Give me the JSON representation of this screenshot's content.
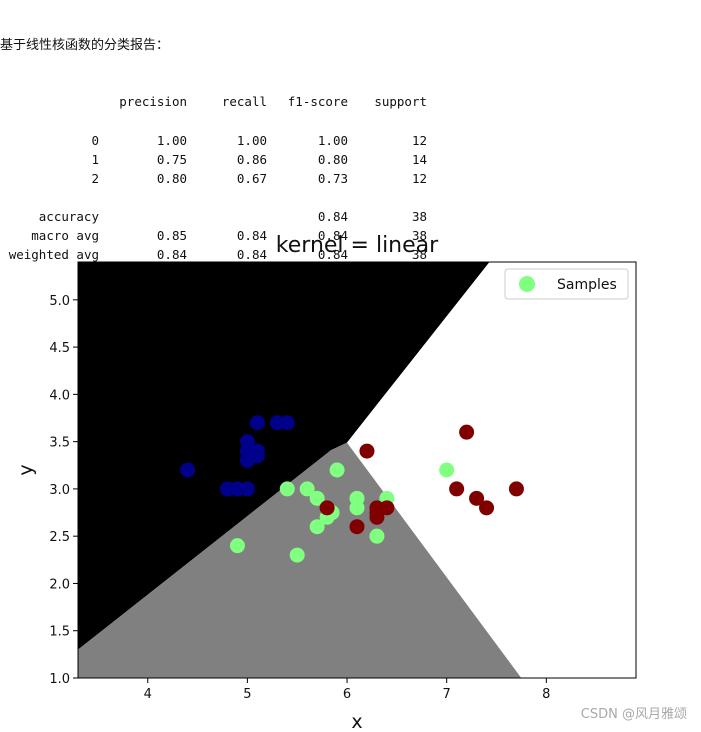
{
  "report": {
    "title": "基于线性核函数的分类报告：",
    "header": [
      "",
      "precision",
      "recall",
      "f1-score",
      "support"
    ],
    "rows": [
      [
        "0",
        "1.00",
        "1.00",
        "1.00",
        "12"
      ],
      [
        "1",
        "0.75",
        "0.86",
        "0.80",
        "14"
      ],
      [
        "2",
        "0.80",
        "0.67",
        "0.73",
        "12"
      ],
      [
        "",
        "",
        "",
        "",
        ""
      ],
      [
        "accuracy",
        "",
        "",
        "0.84",
        "38"
      ],
      [
        "macro avg",
        "0.85",
        "0.84",
        "0.84",
        "38"
      ],
      [
        "weighted avg",
        "0.84",
        "0.84",
        "0.84",
        "38"
      ]
    ]
  },
  "chart_data": {
    "type": "scatter",
    "title": "kernel = linear",
    "xlabel": "x",
    "ylabel": "y",
    "xlim": [
      3.3,
      8.9
    ],
    "ylim": [
      1.0,
      5.4
    ],
    "xticks": [
      4,
      5,
      6,
      7,
      8
    ],
    "yticks": [
      1.0,
      1.5,
      2.0,
      2.5,
      3.0,
      3.5,
      4.0,
      4.5,
      5.0
    ],
    "grid": false,
    "legend": {
      "entries": [
        "Samples"
      ],
      "placement": "top-right"
    },
    "regions": [
      {
        "class": 0,
        "color": "#000000",
        "polygon": [
          [
            3.3,
            5.4
          ],
          [
            7.43,
            5.4
          ],
          [
            6.0,
            3.49
          ],
          [
            5.84,
            3.41
          ],
          [
            3.3,
            1.3
          ]
        ]
      },
      {
        "class": 1,
        "color": "#808080",
        "polygon": [
          [
            3.3,
            1.3
          ],
          [
            5.84,
            3.41
          ],
          [
            6.0,
            3.49
          ],
          [
            7.75,
            1.0
          ],
          [
            3.3,
            1.0
          ]
        ]
      },
      {
        "class": 2,
        "color": "#ffffff",
        "polygon": [
          [
            7.43,
            5.4
          ],
          [
            8.9,
            5.4
          ],
          [
            8.9,
            1.0
          ],
          [
            7.75,
            1.0
          ],
          [
            6.0,
            3.49
          ]
        ]
      }
    ],
    "series": [
      {
        "class": 0,
        "color": "#00008b",
        "x": [
          4.4,
          4.8,
          4.9,
          5.0,
          5.0,
          5.0,
          5.0,
          5.1,
          5.1,
          5.1,
          5.3,
          5.4
        ],
        "y": [
          3.2,
          3.0,
          3.0,
          3.0,
          3.3,
          3.4,
          3.5,
          3.7,
          3.4,
          3.35,
          3.7,
          3.7
        ]
      },
      {
        "class": 1,
        "color": "#80ff80",
        "x": [
          4.9,
          5.4,
          5.5,
          5.6,
          5.7,
          5.7,
          5.8,
          5.9,
          6.1,
          6.1,
          6.3,
          6.4,
          7.0,
          5.85
        ],
        "y": [
          2.4,
          3.0,
          2.3,
          3.0,
          2.6,
          2.9,
          2.7,
          3.2,
          2.9,
          2.8,
          2.5,
          2.9,
          3.2,
          2.75
        ]
      },
      {
        "class": 2,
        "color": "#800000",
        "x": [
          5.8,
          6.1,
          6.2,
          6.3,
          6.3,
          6.4,
          7.1,
          7.2,
          7.3,
          7.4,
          7.7,
          6.3
        ],
        "y": [
          2.8,
          2.6,
          3.4,
          2.8,
          2.7,
          2.8,
          3.0,
          3.6,
          2.9,
          2.8,
          3.0,
          2.75
        ]
      }
    ]
  },
  "watermark": "CSDN @风月雅颂"
}
